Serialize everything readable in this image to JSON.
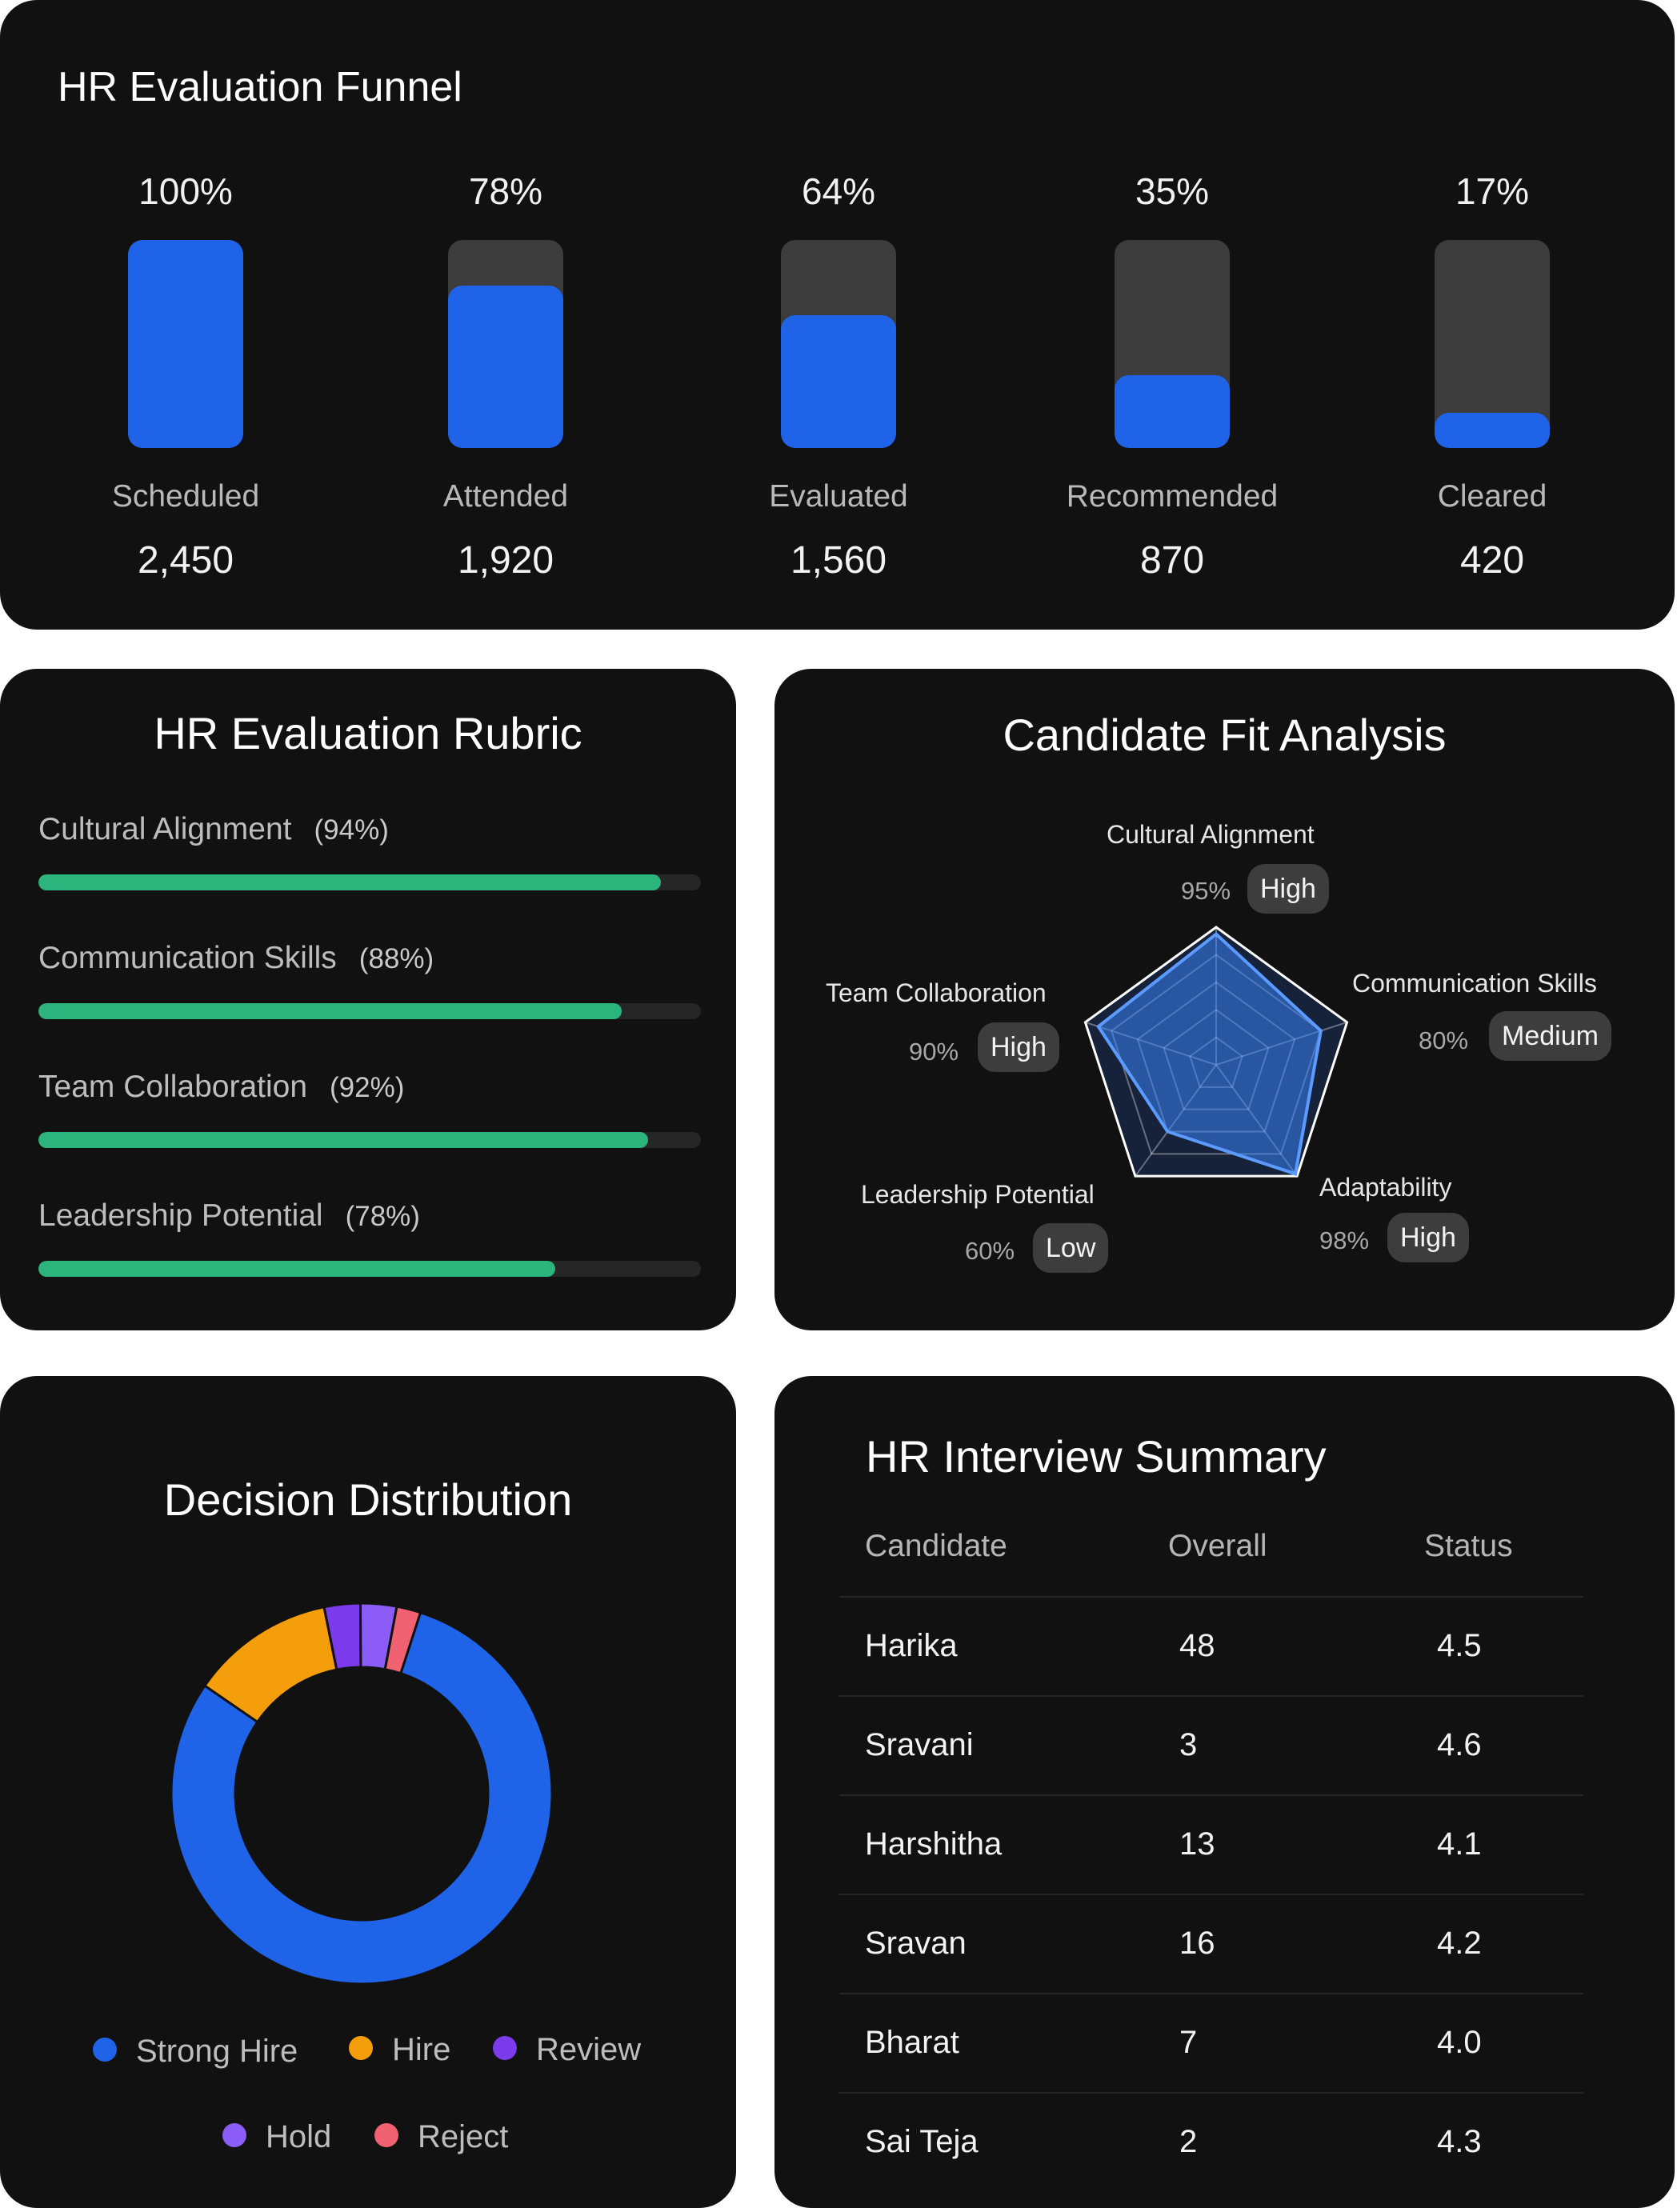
{
  "funnel": {
    "title": "HR Evaluation Funnel",
    "stages": [
      {
        "percent_label": "100%",
        "percent": 100,
        "stage": "Scheduled",
        "count": "2,450"
      },
      {
        "percent_label": "78%",
        "percent": 78,
        "stage": "Attended",
        "count": "1,920"
      },
      {
        "percent_label": "64%",
        "percent": 64,
        "stage": "Evaluated",
        "count": "1,560"
      },
      {
        "percent_label": "35%",
        "percent": 35,
        "stage": "Recommended",
        "count": "870"
      },
      {
        "percent_label": "17%",
        "percent": 17,
        "stage": "Cleared",
        "count": "420"
      }
    ],
    "colors": {
      "fill": "#1e63e8",
      "track": "#3c3c3c"
    }
  },
  "rubric": {
    "title": "HR Evaluation Rubric",
    "items": [
      {
        "label": "Cultural Alignment",
        "percent_label": "(94%)",
        "percent": 94
      },
      {
        "label": "Communication Skills",
        "percent_label": "(88%)",
        "percent": 88
      },
      {
        "label": "Team Collaboration",
        "percent_label": "(92%)",
        "percent": 92
      },
      {
        "label": "Leadership Potential",
        "percent_label": "(78%)",
        "percent": 78
      }
    ],
    "colors": {
      "fill": "#2bb57c",
      "track": "#262626"
    }
  },
  "fit": {
    "title": "Candidate Fit Analysis",
    "axes": [
      {
        "label": "Cultural Alignment",
        "percent_label": "95%",
        "value": 95,
        "level": "High"
      },
      {
        "label": "Communication Skills",
        "percent_label": "80%",
        "value": 80,
        "level": "Medium"
      },
      {
        "label": "Adaptability",
        "percent_label": "98%",
        "value": 98,
        "level": "High"
      },
      {
        "label": "Leadership Potential",
        "percent_label": "60%",
        "value": 60,
        "level": "Low"
      },
      {
        "label": "Team Collaboration",
        "percent_label": "90%",
        "value": 90,
        "level": "High"
      }
    ],
    "colors": {
      "area": "#3b82f6",
      "grid": "#ffffff"
    }
  },
  "decision": {
    "title": "Decision Distribution",
    "legend": [
      {
        "label": "Strong Hire",
        "color": "#1e63e8"
      },
      {
        "label": "Hire",
        "color": "#f59e0b"
      },
      {
        "label": "Review",
        "color": "#7c3aed"
      },
      {
        "label": "Hold",
        "color": "#8b5cf6"
      },
      {
        "label": "Reject",
        "color": "#f06272"
      }
    ]
  },
  "chart_data": {
    "type": "pie",
    "donut": true,
    "title": "Decision Distribution",
    "categories": [
      "Strong Hire",
      "Hire",
      "Review",
      "Hold",
      "Reject"
    ],
    "values": [
      78,
      12,
      3,
      3,
      2
    ],
    "colors": [
      "#1e63e8",
      "#f59e0b",
      "#7c3aed",
      "#8b5cf6",
      "#f06272"
    ],
    "legend_position": "bottom"
  },
  "summary": {
    "title": "HR Interview Summary",
    "headers": [
      "Candidate",
      "Overall",
      "Status"
    ],
    "rows": [
      {
        "candidate": "Harika",
        "overall": "48",
        "status": "4.5"
      },
      {
        "candidate": "Sravani",
        "overall": "3",
        "status": "4.6"
      },
      {
        "candidate": "Harshitha",
        "overall": "13",
        "status": "4.1"
      },
      {
        "candidate": "Sravan",
        "overall": "16",
        "status": "4.2"
      },
      {
        "candidate": "Bharat",
        "overall": "7",
        "status": "4.0"
      },
      {
        "candidate": "Sai Teja",
        "overall": "2",
        "status": "4.3"
      }
    ]
  }
}
